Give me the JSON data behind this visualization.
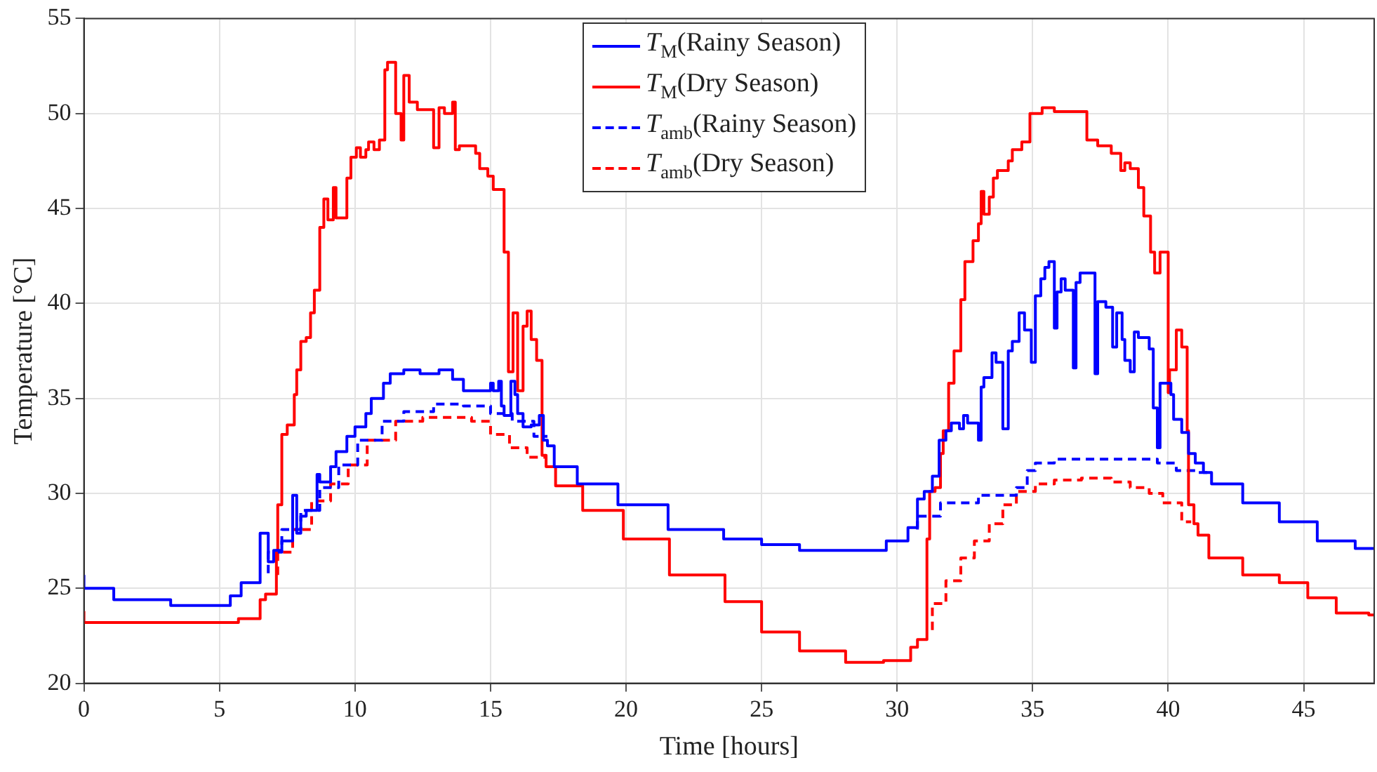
{
  "chart_data": {
    "type": "step",
    "xlabel": "Time [hours]",
    "ylabel": "Temperature [°C]",
    "xlim": [
      0,
      47.6
    ],
    "xticks": [
      0,
      5,
      10,
      15,
      20,
      25,
      30,
      35,
      40,
      45
    ],
    "ylim": [
      20,
      55
    ],
    "yticks": [
      20,
      25,
      30,
      35,
      40,
      45,
      50,
      55
    ],
    "grid": true,
    "legend": "top",
    "marker": "none",
    "series": [
      {
        "name": "T$_{M}$(Rainy Season)",
        "color": "#0000ff",
        "line_style": "solid",
        "x": [
          0,
          1.1,
          3.2,
          4.7,
          5.4,
          5.8,
          6.5,
          6.8,
          7.0,
          7.3,
          7.7,
          7.85,
          8.0,
          8.2,
          8.6,
          8.7,
          9.1,
          9.3,
          9.7,
          10.0,
          10.4,
          10.6,
          11.05,
          11.3,
          11.8,
          12.4,
          13.1,
          13.6,
          14.0,
          14.5,
          15.0,
          15.1,
          15.3,
          15.4,
          15.5,
          15.75,
          15.9,
          16.0,
          16.2,
          16.5,
          16.8,
          16.95,
          17.1,
          17.35,
          18.2,
          19.7,
          21.55,
          23.6,
          25.0,
          26.4,
          28.0,
          29.6,
          30.4,
          30.75,
          31.0,
          31.3,
          31.55,
          31.8,
          32.0,
          32.3,
          32.45,
          32.6,
          33.0,
          33.1,
          33.2,
          33.5,
          33.65,
          33.9,
          34.1,
          34.25,
          34.5,
          34.7,
          34.95,
          35.1,
          35.3,
          35.45,
          35.6,
          35.8,
          35.9,
          36.05,
          36.2,
          36.5,
          36.6,
          36.75,
          37.3,
          37.4,
          37.7,
          37.95,
          38.1,
          38.3,
          38.4,
          38.6,
          38.75,
          38.9,
          39.3,
          39.45,
          39.6,
          39.7,
          39.9,
          40.1,
          40.2,
          40.5,
          40.75,
          41.0,
          41.3,
          41.6,
          42.75,
          44.1,
          45.5,
          46.9,
          47.6
        ],
        "values": [
          25.7,
          25.0,
          24.4,
          24.1,
          24.1,
          24.6,
          25.3,
          27.9,
          26.4,
          27.0,
          27.5,
          29.9,
          27.9,
          28.8,
          29.1,
          31.0,
          30.6,
          31.4,
          32.2,
          33.0,
          33.5,
          34.2,
          35.0,
          35.8,
          36.3,
          36.5,
          36.3,
          36.5,
          36.0,
          35.4,
          35.4,
          35.8,
          35.4,
          35.9,
          34.6,
          34.1,
          35.9,
          35.2,
          34.2,
          33.5,
          33.6,
          34.1,
          32.8,
          32.5,
          31.4,
          30.5,
          29.4,
          28.1,
          27.6,
          27.3,
          27.0,
          27.0,
          27.5,
          28.2,
          29.7,
          30.1,
          30.9,
          32.8,
          33.3,
          33.7,
          33.4,
          34.1,
          33.7,
          32.8,
          35.6,
          36.1,
          37.4,
          36.9,
          33.4,
          37.5,
          38.0,
          39.5,
          38.6,
          36.9,
          40.4,
          41.3,
          41.9,
          42.2,
          38.7,
          40.6,
          41.3,
          40.7,
          36.6,
          41.1,
          41.6,
          36.3,
          40.1,
          39.8,
          37.7,
          39.5,
          38.1,
          37.0,
          36.4,
          38.5,
          38.2,
          37.6,
          34.5,
          32.4,
          35.8,
          35.8,
          35.2,
          33.9,
          33.2,
          32.1,
          31.6,
          31.1,
          30.5,
          29.5,
          28.5,
          27.5,
          27.1
        ]
      },
      {
        "name": "T$_{M}$(Dry Season)",
        "color": "#ff0000",
        "line_style": "solid",
        "x": [
          0,
          4.7,
          5.7,
          6.5,
          6.7,
          7.1,
          7.15,
          7.3,
          7.5,
          7.76,
          7.85,
          8.0,
          8.2,
          8.36,
          8.5,
          8.7,
          8.85,
          9.0,
          9.2,
          9.3,
          9.7,
          9.85,
          10.05,
          10.2,
          10.4,
          10.5,
          10.7,
          10.9,
          11.1,
          11.2,
          11.5,
          11.7,
          11.8,
          12.0,
          12.3,
          12.6,
          12.9,
          13.1,
          13.3,
          13.6,
          13.7,
          13.85,
          14.45,
          14.6,
          14.9,
          15.1,
          15.5,
          15.66,
          15.83,
          16.0,
          16.2,
          16.35,
          16.5,
          16.7,
          16.9,
          17.05,
          17.4,
          18.4,
          19.9,
          21.6,
          23.65,
          25.0,
          26.4,
          28.1,
          29.5,
          30.5,
          30.75,
          31.1,
          31.2,
          31.4,
          31.6,
          31.7,
          31.9,
          32.1,
          32.35,
          32.5,
          32.8,
          33.0,
          33.1,
          33.2,
          33.4,
          33.55,
          33.7,
          34.1,
          34.25,
          34.6,
          34.9,
          35.35,
          35.8,
          36.3,
          37.0,
          37.4,
          37.9,
          38.25,
          38.4,
          38.6,
          38.9,
          39.1,
          39.35,
          39.5,
          39.7,
          40.0,
          40.05,
          40.3,
          40.5,
          40.7,
          40.75,
          40.95,
          41.1,
          41.5,
          42.75,
          44.1,
          45.15,
          46.2,
          47.4,
          47.6
        ],
        "values": [
          23.8,
          23.2,
          23.2,
          23.4,
          24.4,
          24.7,
          27.0,
          29.4,
          33.1,
          33.6,
          35.2,
          36.5,
          38.0,
          38.2,
          39.5,
          40.7,
          44.0,
          45.5,
          44.4,
          46.1,
          44.5,
          46.6,
          47.7,
          48.2,
          47.7,
          48.1,
          48.5,
          48.1,
          48.6,
          52.3,
          52.7,
          50.0,
          48.6,
          52.0,
          50.6,
          50.2,
          50.2,
          48.2,
          50.3,
          50.0,
          50.6,
          48.1,
          48.3,
          47.9,
          47.1,
          46.7,
          46.0,
          42.7,
          36.4,
          39.5,
          35.4,
          38.8,
          39.6,
          38.1,
          37.0,
          32.0,
          31.4,
          30.4,
          29.1,
          27.6,
          25.7,
          24.3,
          22.7,
          21.7,
          21.1,
          21.2,
          21.9,
          22.3,
          27.6,
          30.1,
          30.3,
          32.1,
          33.3,
          35.8,
          37.5,
          40.2,
          42.2,
          43.3,
          44.2,
          45.9,
          44.7,
          45.6,
          46.6,
          47.0,
          47.5,
          48.1,
          48.5,
          50.0,
          50.3,
          50.1,
          50.1,
          48.6,
          48.3,
          47.9,
          47.0,
          47.4,
          47.1,
          46.1,
          44.6,
          42.7,
          41.6,
          42.7,
          35.3,
          36.5,
          38.6,
          37.7,
          33.3,
          29.4,
          28.4,
          27.8,
          26.6,
          25.7,
          25.3,
          24.5,
          23.7,
          23.6
        ]
      },
      {
        "name": "T$_{amb}$(Rainy Season)",
        "color": "#0000ff",
        "line_style": "dashed",
        "x": [
          6.8,
          7.3,
          8.0,
          8.7,
          9.4,
          10.1,
          11.0,
          11.8,
          12.9,
          14.0,
          15.0,
          15.8,
          16.6,
          17.1,
          24,
          30.75,
          31.6,
          33.0,
          34.4,
          34.8,
          35.1,
          35.8,
          37.2,
          39.6,
          40.3,
          41.0,
          41.5
        ],
        "values": [
          25.8,
          26.9,
          28.1,
          29.1,
          30.3,
          31.5,
          32.8,
          33.8,
          34.3,
          34.7,
          34.6,
          34.2,
          33.8,
          33.0,
          null,
          28.1,
          28.8,
          29.5,
          29.9,
          30.3,
          31.2,
          31.6,
          31.8,
          31.8,
          31.6,
          31.2,
          31.1
        ]
      },
      {
        "name": "T$_{amb}$(Dry Season)",
        "color": "#ff0000",
        "line_style": "dashed",
        "x": [
          7.15,
          7.7,
          8.4,
          9.1,
          9.75,
          10.45,
          11.5,
          12.5,
          13.6,
          14.3,
          15.0,
          15.7,
          16.35,
          17.05,
          24,
          31.3,
          31.8,
          32.35,
          32.85,
          33.4,
          33.9,
          34.4,
          35.1,
          35.8,
          36.8,
          37.9,
          38.6,
          39.3,
          39.8,
          40.5,
          40.85
        ],
        "values": [
          25.7,
          26.9,
          28.1,
          29.6,
          30.5,
          31.5,
          32.8,
          33.8,
          34.0,
          34.0,
          33.8,
          33.1,
          32.4,
          31.9,
          null,
          22.8,
          24.2,
          25.4,
          26.6,
          27.5,
          28.4,
          29.4,
          30.1,
          30.5,
          30.7,
          30.8,
          30.6,
          30.3,
          30.0,
          29.5,
          28.5
        ]
      }
    ]
  }
}
